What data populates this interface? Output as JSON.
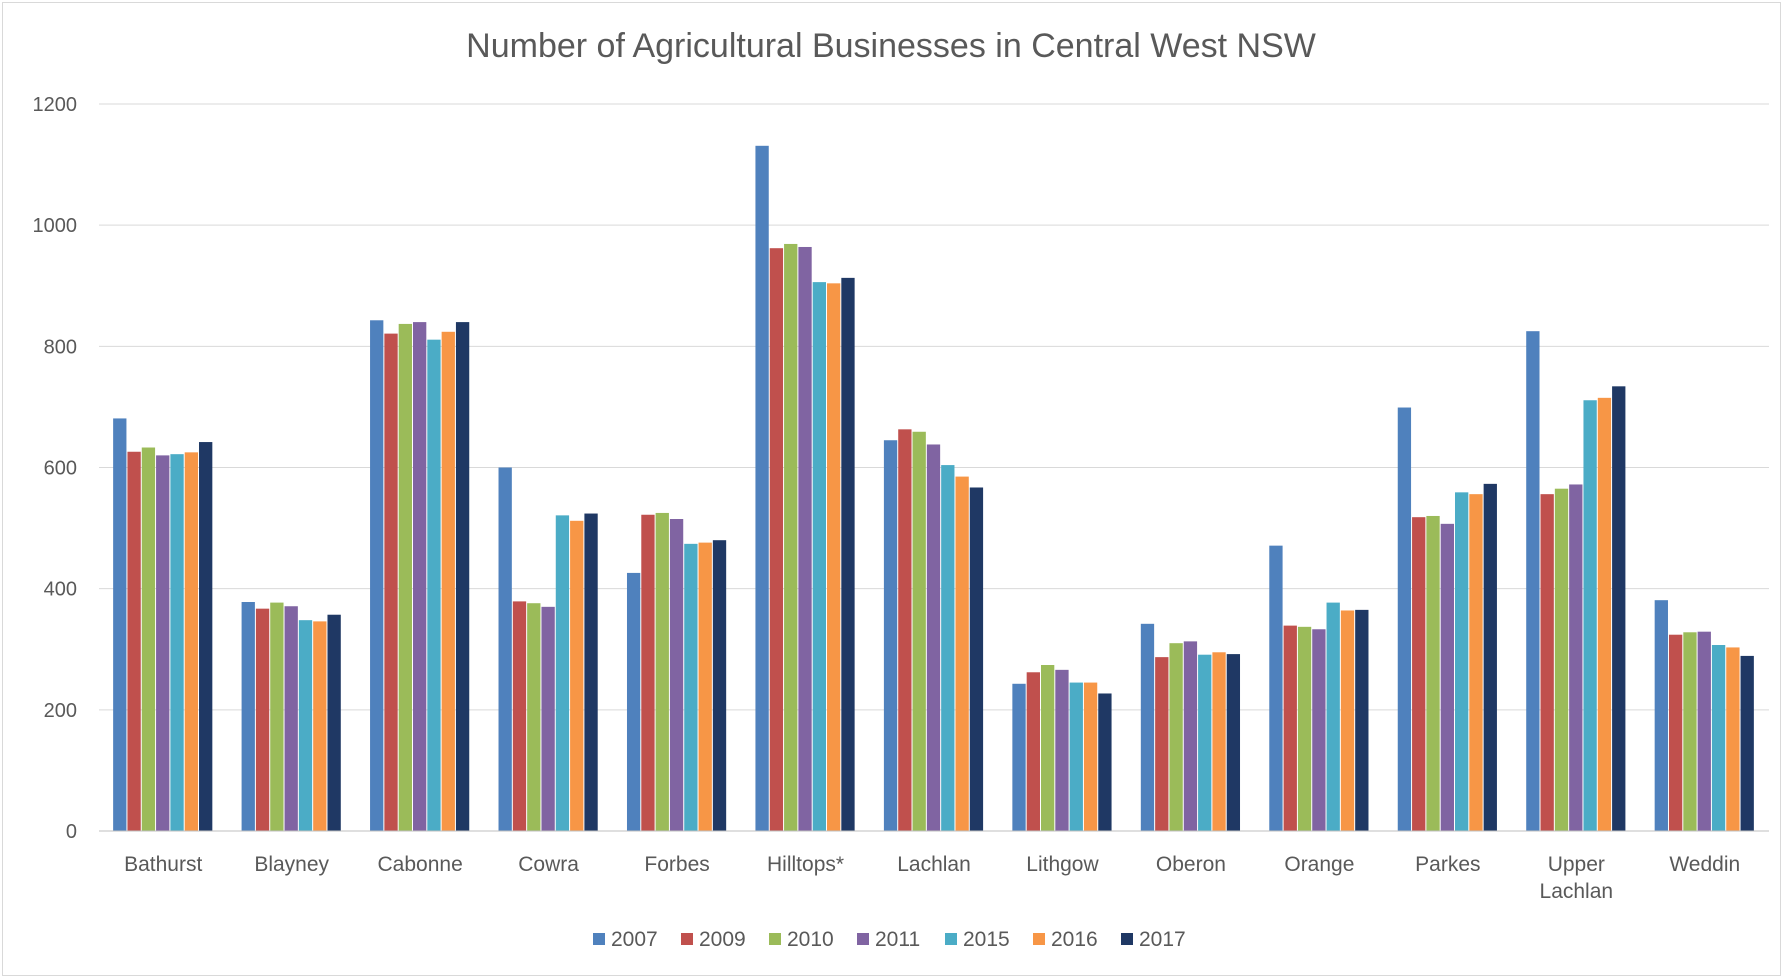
{
  "chart_data": {
    "type": "bar",
    "title": "Number of Agricultural Businesses in Central West NSW",
    "xlabel": "",
    "ylabel": "",
    "ylim": [
      0,
      1200
    ],
    "yticks": [
      0,
      200,
      400,
      600,
      800,
      1000,
      1200
    ],
    "grid": true,
    "legend_position": "bottom",
    "categories": [
      "Bathurst",
      "Blayney",
      "Cabonne",
      "Cowra",
      "Forbes",
      "Hilltops*",
      "Lachlan",
      "Lithgow",
      "Oberon",
      "Orange",
      "Parkes",
      "Upper Lachlan",
      "Weddin"
    ],
    "category_label_lines": [
      [
        "Bathurst"
      ],
      [
        "Blayney"
      ],
      [
        "Cabonne"
      ],
      [
        "Cowra"
      ],
      [
        "Forbes"
      ],
      [
        "Hilltops*"
      ],
      [
        "Lachlan"
      ],
      [
        "Lithgow"
      ],
      [
        "Oberon"
      ],
      [
        "Orange"
      ],
      [
        "Parkes"
      ],
      [
        "Upper",
        "Lachlan"
      ],
      [
        "Weddin"
      ]
    ],
    "series": [
      {
        "name": "2007",
        "color": "#4f81bd",
        "values": [
          681,
          378,
          843,
          600,
          426,
          1131,
          645,
          243,
          342,
          471,
          699,
          825,
          381
        ]
      },
      {
        "name": "2009",
        "color": "#c0504d",
        "values": [
          626,
          367,
          821,
          379,
          522,
          962,
          663,
          262,
          287,
          339,
          518,
          556,
          324
        ]
      },
      {
        "name": "2010",
        "color": "#9bbb59",
        "values": [
          633,
          377,
          837,
          376,
          525,
          969,
          659,
          274,
          310,
          337,
          520,
          565,
          328
        ]
      },
      {
        "name": "2011",
        "color": "#8064a2",
        "values": [
          620,
          371,
          840,
          370,
          515,
          964,
          638,
          266,
          313,
          333,
          507,
          572,
          329
        ]
      },
      {
        "name": "2015",
        "color": "#4bacc6",
        "values": [
          622,
          348,
          811,
          521,
          474,
          906,
          604,
          245,
          291,
          377,
          559,
          711,
          307
        ]
      },
      {
        "name": "2016",
        "color": "#f79646",
        "values": [
          625,
          346,
          824,
          512,
          476,
          904,
          585,
          245,
          295,
          364,
          556,
          715,
          303
        ]
      },
      {
        "name": "2017",
        "color": "#1f3864",
        "values": [
          642,
          357,
          840,
          524,
          480,
          913,
          567,
          227,
          292,
          365,
          573,
          734,
          289
        ]
      }
    ]
  }
}
